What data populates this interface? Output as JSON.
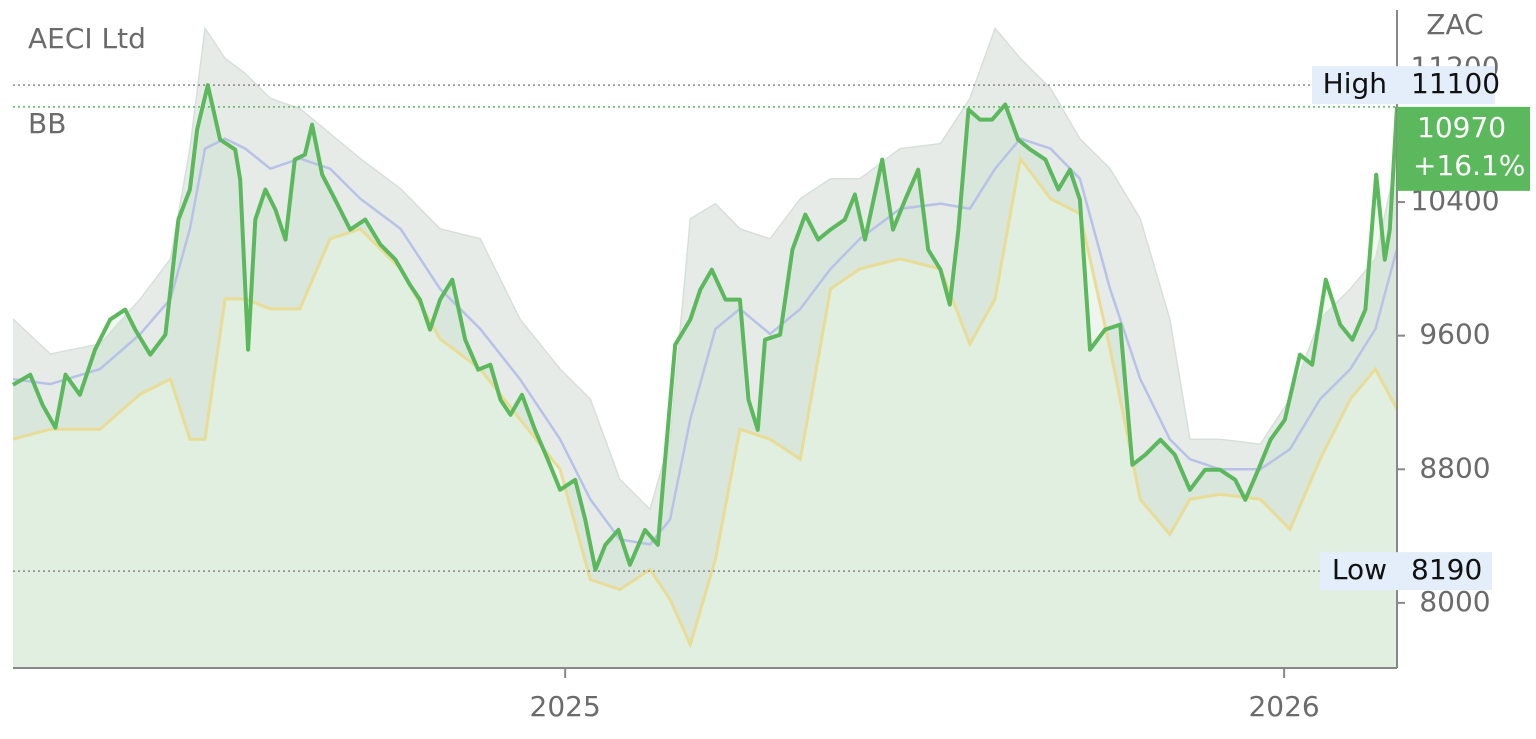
{
  "chart_data": {
    "type": "line",
    "title": "AECI Ltd",
    "unit": "ZAC",
    "xlim": [
      2024.232,
      2026.157
    ],
    "xticks": [
      2025,
      2026
    ],
    "ylim": [
      7610,
      11550
    ],
    "yticks": [
      8000,
      8800,
      9600,
      10400,
      11200
    ],
    "color": "#5cb85c",
    "x": [
      2024.232,
      2024.256,
      2024.273,
      2024.291,
      2024.305,
      2024.325,
      2024.346,
      2024.367,
      2024.388,
      2024.402,
      2024.423,
      2024.444,
      2024.462,
      2024.478,
      2024.488,
      2024.503,
      2024.52,
      2024.541,
      2024.548,
      2024.559,
      2024.569,
      2024.583,
      2024.597,
      2024.611,
      2024.624,
      2024.638,
      2024.648,
      2024.662,
      2024.68,
      2024.701,
      2024.722,
      2024.743,
      2024.764,
      2024.784,
      2024.798,
      2024.812,
      2024.826,
      2024.843,
      2024.861,
      2024.879,
      2024.896,
      2024.91,
      2024.924,
      2024.94,
      2024.958,
      2024.976,
      2024.993,
      2025.014,
      2025.028,
      2025.042,
      2025.056,
      2025.074,
      2025.09,
      2025.111,
      2025.129,
      2025.139,
      2025.153,
      2025.174,
      2025.188,
      2025.204,
      2025.223,
      2025.243,
      2025.255,
      2025.268,
      2025.278,
      2025.299,
      2025.316,
      2025.334,
      2025.352,
      2025.369,
      2025.389,
      2025.403,
      2025.417,
      2025.441,
      2025.456,
      2025.473,
      2025.491,
      2025.505,
      2025.522,
      2025.535,
      2025.547,
      2025.561,
      2025.577,
      2025.594,
      2025.612,
      2025.63,
      2025.647,
      2025.668,
      2025.686,
      2025.702,
      2025.716,
      2025.73,
      2025.751,
      2025.772,
      2025.789,
      2025.807,
      2025.828,
      2025.848,
      2025.869,
      2025.89,
      2025.911,
      2025.932,
      2025.946,
      2025.964,
      2025.981,
      2026.001,
      2026.022,
      2026.039,
      2026.058,
      2026.078,
      2026.095,
      2026.113,
      2026.128,
      2026.14,
      2026.147,
      2026.157
    ],
    "values": [
      9306,
      9366,
      9186,
      9049,
      9366,
      9246,
      9516,
      9696,
      9756,
      9636,
      9486,
      9606,
      10295,
      10475,
      10834,
      11100,
      10774,
      10714,
      10534,
      9516,
      10295,
      10475,
      10355,
      10175,
      10654,
      10684,
      10864,
      10564,
      10415,
      10235,
      10295,
      10145,
      10055,
      9905,
      9816,
      9636,
      9816,
      9935,
      9576,
      9396,
      9426,
      9216,
      9126,
      9246,
      9036,
      8857,
      8677,
      8737,
      8497,
      8198,
      8348,
      8437,
      8228,
      8437,
      8348,
      8857,
      9546,
      9696,
      9876,
      9995,
      9816,
      9816,
      9216,
      9036,
      9576,
      9606,
      10115,
      10325,
      10175,
      10235,
      10295,
      10445,
      10175,
      10654,
      10235,
      10415,
      10594,
      10115,
      9995,
      9786,
      10235,
      10954,
      10894,
      10894,
      10984,
      10774,
      10714,
      10654,
      10475,
      10594,
      10415,
      9516,
      9636,
      9666,
      8827,
      8887,
      8977,
      8887,
      8677,
      8797,
      8797,
      8737,
      8617,
      8797,
      8977,
      9096,
      9486,
      9426,
      9935,
      9666,
      9576,
      9756,
      10564,
      10055,
      10235,
      10970
    ],
    "bands": {
      "label": "BB",
      "x": [
        2024.232,
        2024.284,
        2024.353,
        2024.409,
        2024.451,
        2024.478,
        2024.499,
        2024.527,
        2024.555,
        2024.59,
        2024.631,
        2024.673,
        2024.715,
        2024.771,
        2024.826,
        2024.882,
        2024.937,
        2024.993,
        2025.035,
        2025.076,
        2025.118,
        2025.146,
        2025.174,
        2025.209,
        2025.243,
        2025.285,
        2025.327,
        2025.369,
        2025.41,
        2025.466,
        2025.522,
        2025.563,
        2025.598,
        2025.633,
        2025.675,
        2025.716,
        2025.758,
        2025.8,
        2025.841,
        2025.869,
        2025.911,
        2025.967,
        2026.008,
        2026.05,
        2026.092,
        2026.127,
        2026.157
      ],
      "upper": [
        9700,
        9490,
        9550,
        9820,
        10060,
        10720,
        11440,
        11260,
        11170,
        11020,
        10960,
        10810,
        10660,
        10480,
        10240,
        10180,
        9700,
        9400,
        9220,
        8740,
        8560,
        8980,
        10300,
        10390,
        10240,
        10180,
        10420,
        10540,
        10540,
        10720,
        10750,
        11020,
        11440,
        11260,
        11080,
        10780,
        10600,
        10300,
        9700,
        8980,
        8980,
        8950,
        9220,
        9700,
        9880,
        10060,
        10660
      ],
      "middle": [
        9340,
        9310,
        9400,
        9610,
        9820,
        10240,
        10720,
        10780,
        10720,
        10600,
        10660,
        10600,
        10420,
        10240,
        9880,
        9640,
        9340,
        8980,
        8620,
        8380,
        8350,
        8500,
        9100,
        9640,
        9760,
        9610,
        9760,
        10000,
        10180,
        10360,
        10390,
        10360,
        10600,
        10780,
        10720,
        10540,
        9880,
        9340,
        8980,
        8860,
        8800,
        8800,
        8920,
        9220,
        9400,
        9640,
        10120
      ],
      "lower": [
        8980,
        9040,
        9040,
        9250,
        9340,
        8980,
        8980,
        9820,
        9820,
        9760,
        9760,
        10180,
        10240,
        10000,
        9580,
        9400,
        9100,
        8800,
        8140,
        8080,
        8200,
        8020,
        7750,
        8260,
        9040,
        8980,
        8860,
        9880,
        10000,
        10060,
        10000,
        9550,
        9820,
        10660,
        10420,
        10330,
        9520,
        8620,
        8410,
        8620,
        8650,
        8620,
        8440,
        8860,
        9220,
        9400,
        9160
      ],
      "upper_color": "#e6ebe8",
      "middle_color": "#b8c2e8",
      "lower_color": "#e8dc96"
    },
    "high": {
      "label": "High",
      "value": 11100
    },
    "low": {
      "label": "Low",
      "value": 8190
    },
    "last": {
      "value": 10970,
      "change": "+16.1%"
    }
  }
}
